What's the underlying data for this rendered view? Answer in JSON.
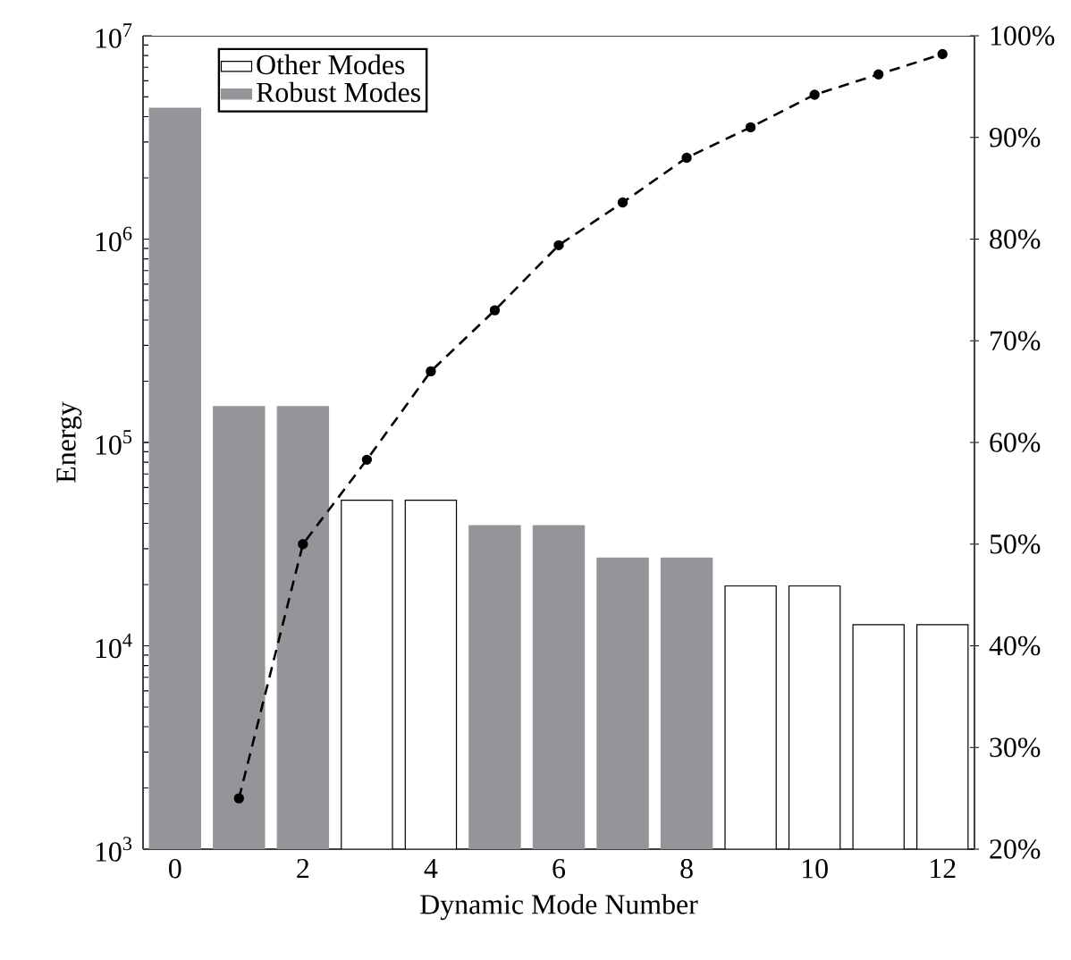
{
  "chart_data": {
    "type": "bar",
    "xlabel": "Dynamic Mode Number",
    "ylabel": "Energy",
    "x": [
      0,
      1,
      2,
      3,
      4,
      5,
      6,
      7,
      8,
      9,
      10,
      11,
      12
    ],
    "series": [
      {
        "name": "Other Modes",
        "color": "#ffffff",
        "values": [
          null,
          null,
          null,
          52000,
          52000,
          null,
          null,
          null,
          null,
          19700,
          19700,
          12700,
          12700
        ]
      },
      {
        "name": "Robust Modes",
        "color": "#939598",
        "values": [
          4400000,
          150000,
          150000,
          null,
          null,
          39000,
          39000,
          27000,
          27000,
          null,
          null,
          null,
          null
        ]
      },
      {
        "type": "line",
        "axis": "y2",
        "color": "#000000",
        "marker": "circle",
        "line_style": "dashed",
        "x": [
          1,
          2,
          3,
          4,
          5,
          6,
          7,
          8,
          9,
          10,
          11,
          12
        ],
        "values": [
          25,
          50,
          58.3,
          67,
          73,
          79.4,
          83.6,
          88,
          91,
          94.2,
          96.2,
          98.2
        ]
      }
    ],
    "log": "y",
    "legend": "top left",
    "grid": false,
    "xlim": [
      -0.5,
      12.5
    ],
    "xticks": [
      0,
      2,
      4,
      6,
      8,
      10,
      12
    ],
    "ylim": [
      1000,
      10000000
    ],
    "yticks": [
      {
        "value": 1000,
        "label": "10$^{3}$"
      },
      {
        "value": 10000,
        "label": "10$^{4}$"
      },
      {
        "value": 100000,
        "label": "10$^{5}$"
      },
      {
        "value": 1000000,
        "label": "10$^{6}$"
      },
      {
        "value": 10000000,
        "label": "10$^{7}$"
      }
    ],
    "y2lim": [
      20,
      100
    ],
    "y2ticks": [
      {
        "value": 20,
        "label": "20%"
      },
      {
        "value": 30,
        "label": "30%"
      },
      {
        "value": 40,
        "label": "40%"
      },
      {
        "value": 50,
        "label": "50%"
      },
      {
        "value": 60,
        "label": "60%"
      },
      {
        "value": 70,
        "label": "70%"
      },
      {
        "value": 80,
        "label": "80%"
      },
      {
        "value": 90,
        "label": "90%"
      },
      {
        "value": 100,
        "label": "100%"
      }
    ]
  }
}
